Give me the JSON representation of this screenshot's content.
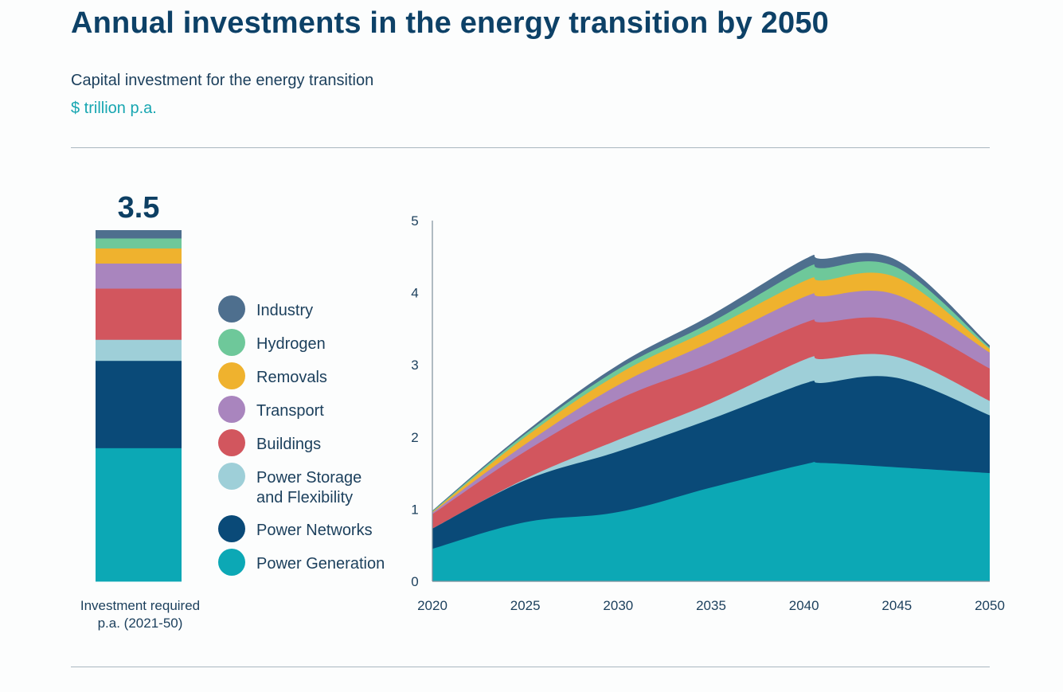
{
  "header": {
    "title": "Annual investments in the energy transition by 2050",
    "subtitle": "Capital investment for the energy transition",
    "unit": "$ trillion p.a."
  },
  "chart_data": [
    {
      "type": "bar",
      "orientation": "vertical-stacked",
      "total_label": "3.5",
      "xlabel": "Investment required p.a. (2021-50)",
      "xlabel_lines": [
        "Investment required",
        "p.a. (2021-50)"
      ],
      "segments": [
        {
          "name": "Power Generation",
          "value": 1.33,
          "color": "#0ca8b5"
        },
        {
          "name": "Power Networks",
          "value": 0.87,
          "color": "#0a4a78"
        },
        {
          "name": "Power Storage and Flexibility",
          "value": 0.21,
          "color": "#9ecfd8"
        },
        {
          "name": "Buildings",
          "value": 0.51,
          "color": "#d2565e"
        },
        {
          "name": "Transport",
          "value": 0.25,
          "color": "#a985be"
        },
        {
          "name": "Removals",
          "value": 0.15,
          "color": "#efb22e"
        },
        {
          "name": "Hydrogen",
          "value": 0.1,
          "color": "#6ec89a"
        },
        {
          "name": "Industry",
          "value": 0.08,
          "color": "#4e6f8e"
        }
      ]
    },
    {
      "type": "area",
      "stacked": true,
      "x": [
        2020,
        2025,
        2030,
        2035,
        2040,
        2041,
        2045,
        2050
      ],
      "xticks": [
        "2020",
        "2025",
        "2030",
        "2035",
        "2040",
        "2045",
        "2050"
      ],
      "yticks": [
        "0",
        "1",
        "2",
        "3",
        "4",
        "5"
      ],
      "ylim": [
        0,
        5
      ],
      "xlim": [
        2020,
        2050
      ],
      "grid": false,
      "series": [
        {
          "name": "Power Generation",
          "color": "#0ca8b5",
          "values": [
            0.45,
            0.82,
            0.96,
            1.3,
            1.62,
            1.64,
            1.58,
            1.5
          ]
        },
        {
          "name": "Power Networks",
          "color": "#0a4a78",
          "values": [
            0.28,
            0.58,
            0.84,
            0.95,
            1.12,
            1.11,
            1.24,
            0.8
          ]
        },
        {
          "name": "Power Storage and Flexibility",
          "color": "#9ecfd8",
          "values": [
            0.0,
            0.02,
            0.16,
            0.22,
            0.33,
            0.33,
            0.29,
            0.2
          ]
        },
        {
          "name": "Buildings",
          "color": "#d2565e",
          "values": [
            0.2,
            0.38,
            0.56,
            0.55,
            0.51,
            0.51,
            0.5,
            0.45
          ]
        },
        {
          "name": "Transport",
          "color": "#a985be",
          "values": [
            0.02,
            0.1,
            0.2,
            0.3,
            0.36,
            0.36,
            0.36,
            0.22
          ]
        },
        {
          "name": "Removals",
          "color": "#efb22e",
          "values": [
            0.01,
            0.1,
            0.15,
            0.18,
            0.22,
            0.22,
            0.24,
            0.05
          ]
        },
        {
          "name": "Hydrogen",
          "color": "#6ec89a",
          "values": [
            0.01,
            0.04,
            0.07,
            0.09,
            0.17,
            0.17,
            0.14,
            0.02
          ]
        },
        {
          "name": "Industry",
          "color": "#4e6f8e",
          "values": [
            0.01,
            0.03,
            0.06,
            0.1,
            0.13,
            0.13,
            0.1,
            0.03
          ]
        }
      ]
    }
  ],
  "legend": [
    {
      "name": "Industry",
      "lines": [
        "Industry"
      ],
      "color": "#4e6f8e"
    },
    {
      "name": "Hydrogen",
      "lines": [
        "Hydrogen"
      ],
      "color": "#6ec89a"
    },
    {
      "name": "Removals",
      "lines": [
        "Removals"
      ],
      "color": "#efb22e"
    },
    {
      "name": "Transport",
      "lines": [
        "Transport"
      ],
      "color": "#a985be"
    },
    {
      "name": "Buildings",
      "lines": [
        "Buildings"
      ],
      "color": "#d2565e"
    },
    {
      "name": "Power Storage and Flexibility",
      "lines": [
        "Power Storage",
        "and Flexibility"
      ],
      "color": "#9ecfd8"
    },
    {
      "name": "Power Networks",
      "lines": [
        "Power Networks"
      ],
      "color": "#0a4a78"
    },
    {
      "name": "Power Generation",
      "lines": [
        "Power Generation"
      ],
      "color": "#0ca8b5"
    }
  ]
}
